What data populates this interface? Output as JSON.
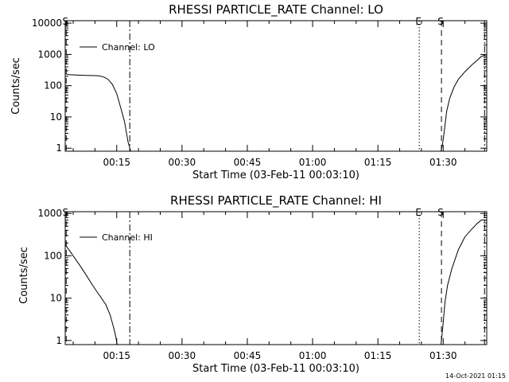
{
  "timestamp": "14-Oct-2021 01:15",
  "chart_data": [
    {
      "type": "line",
      "title": "RHESSI PARTICLE_RATE Channel: LO",
      "xlabel": "Start Time (03-Feb-11 00:03:10)",
      "ylabel": "Counts/sec",
      "yscale": "log",
      "ylim": [
        0.8,
        12000
      ],
      "xlim_minutes": [
        3.17,
        100
      ],
      "x_ticks": [
        {
          "min": 15,
          "label": "00:15"
        },
        {
          "min": 30,
          "label": "00:30"
        },
        {
          "min": 45,
          "label": "00:45"
        },
        {
          "min": 60,
          "label": "01:00"
        },
        {
          "min": 75,
          "label": "01:15"
        },
        {
          "min": 90,
          "label": "01:30"
        }
      ],
      "y_ticks": [
        {
          "value": 1,
          "label": "1"
        },
        {
          "value": 10,
          "label": "10"
        },
        {
          "value": 100,
          "label": "100"
        },
        {
          "value": 1000,
          "label": "1000"
        },
        {
          "value": 10000,
          "label": "10000"
        }
      ],
      "legend": {
        "label": "Channel: LO",
        "position": "top-left"
      },
      "markers": [
        {
          "min": 3.4,
          "style": "dashed",
          "label": "S"
        },
        {
          "min": 18.0,
          "style": "dashdot",
          "label": ""
        },
        {
          "min": 84.5,
          "style": "dotted",
          "label": "E"
        },
        {
          "min": 89.6,
          "style": "dashed",
          "label": "S"
        },
        {
          "min": 99.5,
          "style": "dashdot",
          "label": ""
        }
      ],
      "series": [
        {
          "name": "Channel: LO",
          "segments": [
            [
              [
                3.2,
                240
              ],
              [
                4,
                225
              ],
              [
                6,
                218
              ],
              [
                8,
                213
              ],
              [
                10,
                210
              ],
              [
                11,
                205
              ],
              [
                12,
                190
              ],
              [
                13,
                160
              ],
              [
                14,
                110
              ],
              [
                15,
                55
              ],
              [
                16,
                18
              ],
              [
                16.8,
                7
              ],
              [
                17.6,
                1.6
              ],
              [
                18.2,
                0.8
              ]
            ],
            [
              [
                89.5,
                0.8
              ],
              [
                89.9,
                1.5
              ],
              [
                90.3,
                4
              ],
              [
                90.8,
                15
              ],
              [
                91.5,
                40
              ],
              [
                92.5,
                90
              ],
              [
                93.5,
                160
              ],
              [
                95,
                280
              ],
              [
                96.5,
                450
              ],
              [
                97.8,
                650
              ],
              [
                98.7,
                850
              ],
              [
                99.5,
                950
              ]
            ]
          ]
        }
      ]
    },
    {
      "type": "line",
      "title": "RHESSI PARTICLE_RATE Channel: HI",
      "xlabel": "Start Time (03-Feb-11 00:03:10)",
      "ylabel": "Counts/sec",
      "yscale": "log",
      "ylim": [
        0.8,
        1100
      ],
      "xlim_minutes": [
        3.17,
        100
      ],
      "x_ticks": [
        {
          "min": 15,
          "label": "00:15"
        },
        {
          "min": 30,
          "label": "00:30"
        },
        {
          "min": 45,
          "label": "00:45"
        },
        {
          "min": 60,
          "label": "01:00"
        },
        {
          "min": 75,
          "label": "01:15"
        },
        {
          "min": 90,
          "label": "01:30"
        }
      ],
      "y_ticks": [
        {
          "value": 1,
          "label": "1"
        },
        {
          "value": 10,
          "label": "10"
        },
        {
          "value": 100,
          "label": "100"
        },
        {
          "value": 1000,
          "label": "1000"
        }
      ],
      "legend": {
        "label": "Channel: HI",
        "position": "top-left"
      },
      "markers": [
        {
          "min": 3.4,
          "style": "dashed",
          "label": "S"
        },
        {
          "min": 18.0,
          "style": "dashdot",
          "label": ""
        },
        {
          "min": 84.5,
          "style": "dotted",
          "label": "E"
        },
        {
          "min": 89.6,
          "style": "dashed",
          "label": "S"
        },
        {
          "min": 99.5,
          "style": "dashdot",
          "label": ""
        }
      ],
      "series": [
        {
          "name": "Channel: HI",
          "segments": [
            [
              [
                3.2,
                180
              ],
              [
                4,
                140
              ],
              [
                5,
                100
              ],
              [
                6.5,
                60
              ],
              [
                8,
                35
              ],
              [
                9.5,
                20
              ],
              [
                10.5,
                14
              ],
              [
                11.5,
                10
              ],
              [
                12.5,
                7
              ],
              [
                13.5,
                4
              ],
              [
                14.3,
                2
              ],
              [
                14.8,
                1.2
              ],
              [
                15.1,
                0.8
              ]
            ],
            [
              [
                89.5,
                0.8
              ],
              [
                89.9,
                2
              ],
              [
                90.4,
                8
              ],
              [
                91,
                20
              ],
              [
                92,
                50
              ],
              [
                93.5,
                140
              ],
              [
                95,
                280
              ],
              [
                96.5,
                420
              ],
              [
                97.8,
                580
              ],
              [
                98.8,
                700
              ],
              [
                99.5,
                700
              ]
            ]
          ]
        }
      ]
    }
  ]
}
